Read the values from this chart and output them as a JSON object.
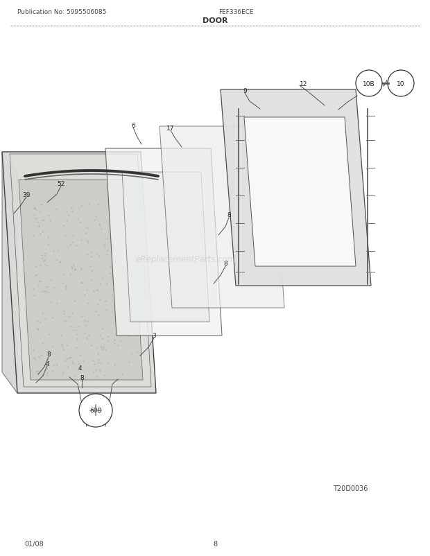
{
  "title": "DOOR",
  "pub_no": "Publication No: 5995506085",
  "model": "FEF336ECE",
  "diagram_id": "T20D0036",
  "date": "01/08",
  "page": "8",
  "watermark": "eReplacementParts.com",
  "bg_color": "#ffffff",
  "line_color": "#333333",
  "label_color": "#222222",
  "header_line_color": "#666666"
}
